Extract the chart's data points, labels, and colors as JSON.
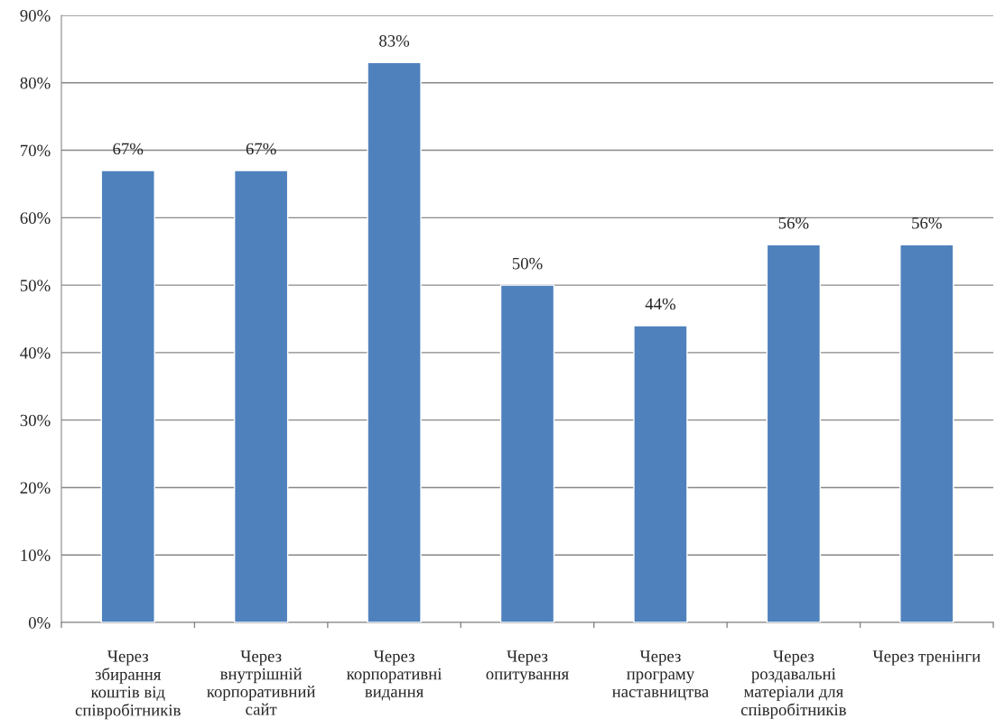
{
  "chart_data": {
    "type": "bar",
    "categories": [
      "Через\nзбирання\nкоштів від\nспівробітників",
      "Через\nвнутрішній\nкорпоративний\nсайт",
      "Через\nкорпоративні\nвидання",
      "Через\nопитування",
      "Через\nпрограму\nнаставництва",
      "Через\nроздавальні\nматеріали для\nспівробітників",
      "Через тренінги"
    ],
    "values": [
      67,
      67,
      83,
      50,
      44,
      56,
      56
    ],
    "value_labels": [
      "67%",
      "67%",
      "83%",
      "50%",
      "44%",
      "56%",
      "56%"
    ],
    "color": "#4f81bd",
    "ylim": [
      0,
      90
    ],
    "yticks": [
      {
        "value": 0,
        "label": "0%"
      },
      {
        "value": 10,
        "label": "10%"
      },
      {
        "value": 20,
        "label": "20%"
      },
      {
        "value": 30,
        "label": "30%"
      },
      {
        "value": 40,
        "label": "40%"
      },
      {
        "value": 50,
        "label": "50%"
      },
      {
        "value": 60,
        "label": "60%"
      },
      {
        "value": 70,
        "label": "70%"
      },
      {
        "value": 80,
        "label": "80%"
      },
      {
        "value": 90,
        "label": "90%"
      }
    ],
    "grid": "y"
  }
}
